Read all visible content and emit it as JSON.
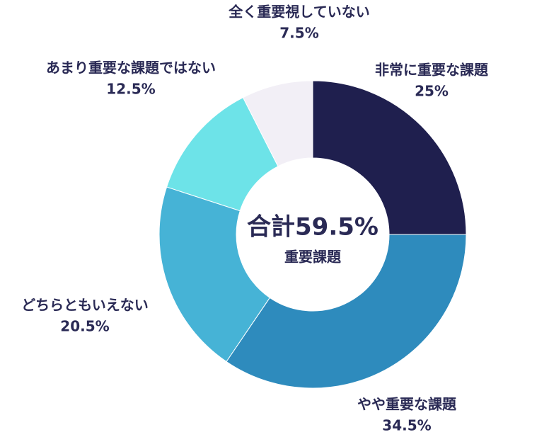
{
  "chart_data": {
    "type": "donut",
    "categories": [
      "非常に重要な課題",
      "やや重要な課題",
      "どちらともいえない",
      "あまり重要な課題ではない",
      "全く重要視していない"
    ],
    "values": [
      25,
      34.5,
      20.5,
      12.5,
      7.5
    ],
    "value_labels": [
      "25%",
      "34.5%",
      "20.5%",
      "12.5%",
      "7.5%"
    ],
    "colors": [
      "#1f1f4e",
      "#2e8bbd",
      "#46b3d6",
      "#6de3e8",
      "#f2eff6"
    ],
    "center_title": "合計59.5%",
    "center_subtitle": "重要課題"
  }
}
